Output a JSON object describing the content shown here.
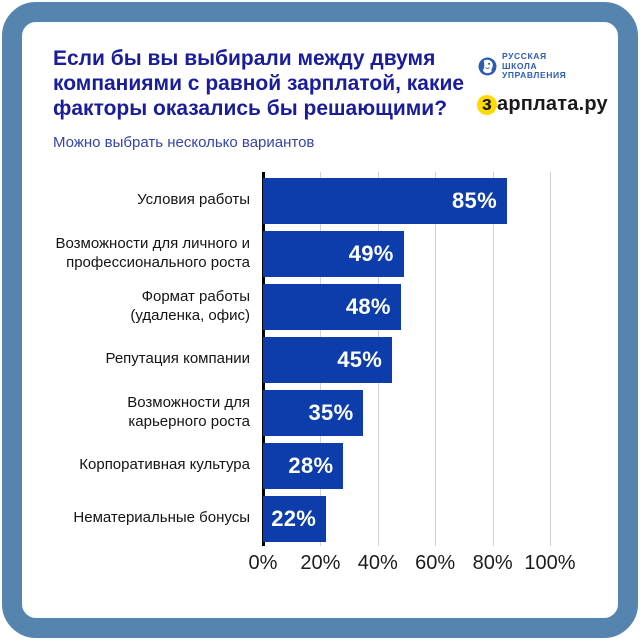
{
  "header": {
    "title": "Если бы вы выбирали между двумя компаниями с равной зарплатой, какие факторы оказались бы решающими?",
    "title_lines": [
      "Если бы вы выбирали между двумя",
      "компаниями с равной зарплатой, какие",
      "факторы оказались бы решающими?"
    ],
    "subtitle": "Можно выбрать несколько вариантов"
  },
  "logos": {
    "rsm": {
      "lines": [
        "РУССКАЯ",
        "ШКОЛА",
        "УПРАВЛЕНИЯ"
      ]
    },
    "zarplata": {
      "first_letter": "з",
      "rest": "арплата.ру"
    }
  },
  "chart_data": {
    "type": "bar",
    "orientation": "horizontal",
    "categories": [
      "Условия работы",
      "Возможности для личного и профессионального роста",
      "Формат работы (удаленка, офис)",
      "Репутация компании",
      "Возможности для карьерного роста",
      "Корпоративная культура",
      "Нематериальные бонусы"
    ],
    "category_lines": [
      [
        "Условия работы"
      ],
      [
        "Возможности для личного и",
        "профессионального роста"
      ],
      [
        "Формат работы",
        "(удаленка, офис)"
      ],
      [
        "Репутация компании"
      ],
      [
        "Возможности для",
        "карьерного роста"
      ],
      [
        "Корпоративная культура"
      ],
      [
        "Нематериальные бонусы"
      ]
    ],
    "values": [
      85,
      49,
      48,
      45,
      35,
      28,
      22
    ],
    "value_labels": [
      "85%",
      "49%",
      "48%",
      "45%",
      "35%",
      "28%",
      "22%"
    ],
    "x_ticks": [
      "0%",
      "20%",
      "40%",
      "60%",
      "80%",
      "100%"
    ],
    "xlim": [
      0,
      100
    ],
    "grid": true,
    "legend_position": "none",
    "title": "Если бы вы выбирали между двумя компаниями с равной зарплатой, какие факторы оказались бы решающими?"
  },
  "colors": {
    "background": "#ffffff",
    "frame": "#5585ae",
    "bar": "#0d3dab",
    "title": "#1a1d99",
    "subtitle": "#3644a6",
    "rsm": "#2d5cb0",
    "zbadge": "#ffd900",
    "category_text": "#141414",
    "axis_text": "#1c1c1c",
    "gridline": "#d2d2d2",
    "axis_line": "#000000",
    "value_text": "#ffffff"
  }
}
